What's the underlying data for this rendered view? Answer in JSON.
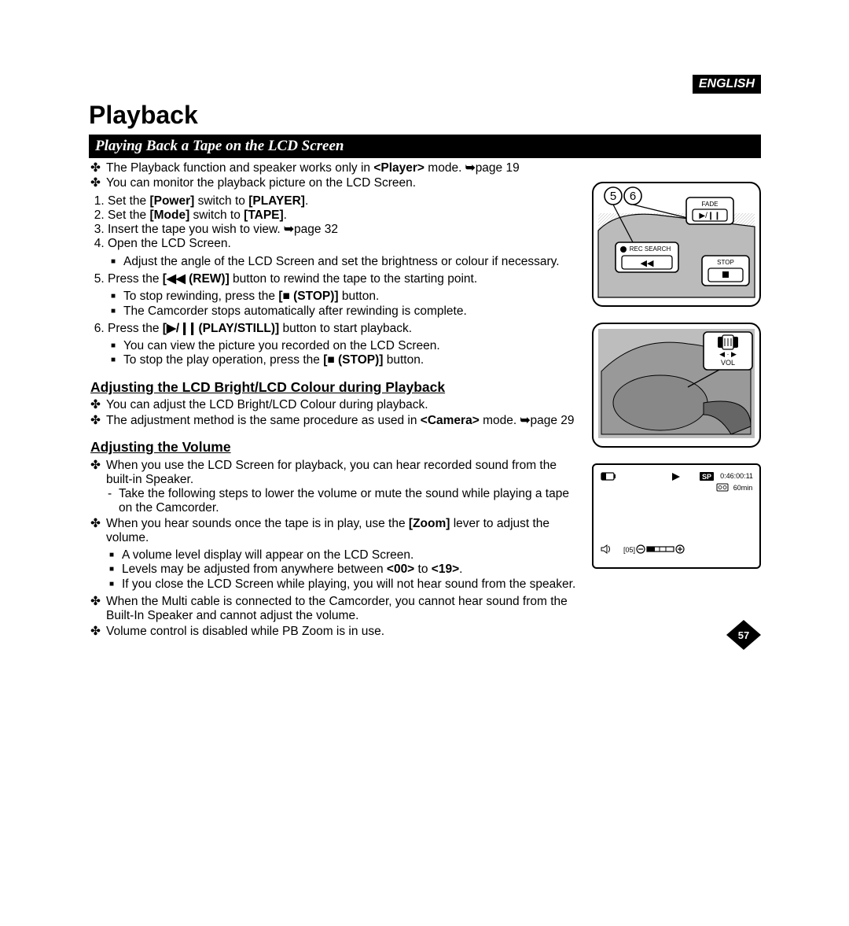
{
  "language_badge": "ENGLISH",
  "title": "Playback",
  "section_title": "Playing Back a Tape on the LCD Screen",
  "intro": [
    "The Playback function and speaker works only in <b>&lt;Player&gt;</b> mode. <span class='arrow'>➥</span>page 19",
    "You can monitor the playback picture on the LCD Screen."
  ],
  "steps": [
    {
      "text": "Set the <b>[Power]</b> switch to <b>[PLAYER]</b>."
    },
    {
      "text": "Set the <b>[Mode]</b> switch to <b>[TAPE]</b>."
    },
    {
      "text": "Insert the tape you wish to view. <span class='arrow'>➥</span>page 32"
    },
    {
      "text": "Open the LCD Screen.",
      "sub_sq": [
        "Adjust the angle of the LCD Screen and set the brightness or colour if necessary."
      ]
    },
    {
      "text": "Press the <b>[◀◀ (REW)]</b> button to rewind the tape to the starting point.",
      "sub_sq": [
        "To stop rewinding, press the <b>[■ (STOP)]</b> button.",
        "The Camcorder stops automatically after rewinding is complete."
      ]
    },
    {
      "text": "Press the <b>[▶/<span style='letter-spacing:-3px'>❙❙</span> (PLAY/STILL)]</b> button to start playback.",
      "sub_sq": [
        "You can view the picture you recorded on the LCD Screen.",
        "To stop the play operation, press the <b>[■ (STOP)]</b> button."
      ]
    }
  ],
  "sub_heading_1": "Adjusting the LCD Bright/LCD Colour during Playback",
  "sub1_items": [
    "You can adjust the LCD Bright/LCD Colour during playback.",
    "The adjustment method is the same procedure as used in <b>&lt;Camera&gt;</b> mode. <span class='arrow'>➥</span>page 29"
  ],
  "sub_heading_2": "Adjusting the Volume",
  "sub2_items": [
    {
      "text": "When you use the LCD Screen for playback, you can hear recorded sound from the built-in Speaker.",
      "dash": [
        "Take the following steps to lower the volume or mute the sound while playing a tape on the Camcorder."
      ]
    },
    {
      "text": "When you hear sounds once the tape is in play, use the <b>[Zoom]</b> lever to adjust the volume.",
      "sq": [
        "A volume level display will appear on the LCD Screen.",
        "Levels may be adjusted from anywhere between <b>&lt;00&gt;</b> to <b>&lt;19&gt;</b>.",
        "If you close the LCD Screen while playing, you will not hear sound from the speaker."
      ]
    },
    {
      "text": "When the Multi cable is connected to the Camcorder, you cannot hear sound from the Built-In Speaker and cannot adjust the volume."
    },
    {
      "text": "Volume control is disabled while PB Zoom is in use."
    }
  ],
  "fig1": {
    "callout_5": "5",
    "callout_6": "6",
    "fade": "FADE",
    "rec_search": "REC SEARCH",
    "stop": "STOP"
  },
  "fig2": {
    "vol": "VOL"
  },
  "fig3": {
    "sp": "SP",
    "time": "0:46:00:11",
    "tape": "60min",
    "vol_num": "[05]",
    "colors": {
      "sp_bg": "#000",
      "border": "#000"
    }
  },
  "page_number": "57",
  "colors": {
    "black": "#000000",
    "white": "#ffffff"
  }
}
